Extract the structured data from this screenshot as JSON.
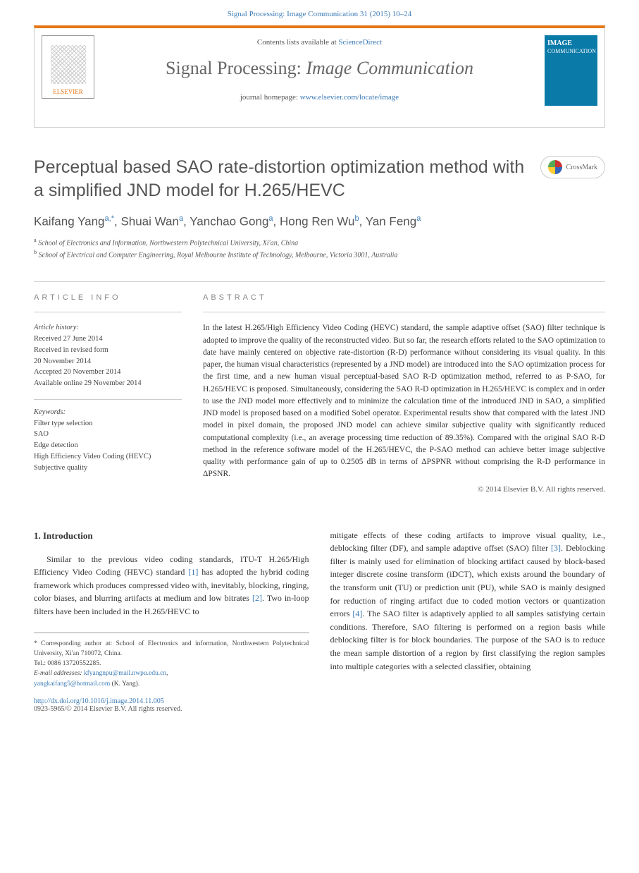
{
  "citation": {
    "prefix": "Signal Processing: Image Communication 31 (2015) 10–24"
  },
  "header": {
    "contents_text": "Contents lists available at ",
    "contents_link": "ScienceDirect",
    "journal_name_a": "Signal Processing: ",
    "journal_name_b": "Image Communication",
    "homepage_text": "journal homepage: ",
    "homepage_link": "www.elsevier.com/locate/image",
    "elsevier_label": "ELSEVIER",
    "cover_title": "IMAGE",
    "cover_sub": "COMMUNICATION"
  },
  "colors": {
    "accent_orange": "#e67817",
    "link_blue": "#3a7ab5",
    "cover_blue": "#0a7aa8",
    "text_grey": "#555555",
    "border_grey": "#cccccc"
  },
  "article": {
    "title": "Perceptual based SAO rate-distortion optimization method with a simplified JND model for H.265/HEVC",
    "crossmark": "CrossMark",
    "authors_html": "Kaifang Yang",
    "authors": [
      {
        "name": "Kaifang Yang",
        "sup": "a,*"
      },
      {
        "name": "Shuai Wan",
        "sup": "a"
      },
      {
        "name": "Yanchao Gong",
        "sup": "a"
      },
      {
        "name": "Hong Ren Wu",
        "sup": "b"
      },
      {
        "name": "Yan Feng",
        "sup": "a"
      }
    ],
    "affiliations": [
      {
        "sup": "a",
        "text": "School of Electronics and Information, Northwestern Polytechnical University, Xi'an, China"
      },
      {
        "sup": "b",
        "text": "School of Electrical and Computer Engineering, Royal Melbourne Institute of Technology, Melbourne, Victoria 3001, Australia"
      }
    ]
  },
  "info": {
    "section_label": "article info",
    "history_label": "Article history:",
    "history": [
      "Received 27 June 2014",
      "Received in revised form",
      "20 November 2014",
      "Accepted 20 November 2014",
      "Available online 29 November 2014"
    ],
    "keywords_label": "Keywords:",
    "keywords": [
      "Filter type selection",
      "SAO",
      "Edge detection",
      "High Efficiency Video Coding (HEVC)",
      "Subjective quality"
    ]
  },
  "abstract": {
    "section_label": "abstract",
    "text": "In the latest H.265/High Efficiency Video Coding (HEVC) standard, the sample adaptive offset (SAO) filter technique is adopted to improve the quality of the reconstructed video. But so far, the research efforts related to the SAO optimization to date have mainly centered on objective rate-distortion (R-D) performance without considering its visual quality. In this paper, the human visual characteristics (represented by a JND model) are introduced into the SAO optimization process for the first time, and a new human visual perceptual-based SAO R-D optimization method, referred to as P-SAO, for H.265/HEVC is proposed. Simultaneously, considering the SAO R-D optimization in H.265/HEVC is complex and in order to use the JND model more effectively and to minimize the calculation time of the introduced JND in SAO, a simplified JND model is proposed based on a modified Sobel operator. Experimental results show that compared with the latest JND model in pixel domain, the proposed JND model can achieve similar subjective quality with significantly reduced computational complexity (i.e., an average processing time reduction of 89.35%). Compared with the original SAO R-D method in the reference software model of the H.265/HEVC, the P-SAO method can achieve better image subjective quality with performance gain of up to 0.2505 dB in terms of ΔPSPNR without comprising the R-D performance in ΔPSNR.",
    "copyright": "© 2014 Elsevier B.V. All rights reserved."
  },
  "body": {
    "section_num": "1.",
    "section_title": "Introduction",
    "col1": "Similar to the previous video coding standards, ITU-T H.265/High Efficiency Video Coding (HEVC) standard [1] has adopted the hybrid coding framework which produces compressed video with, inevitably, blocking, ringing, color biases, and blurring artifacts at medium and low bitrates [2]. Two in-loop filters have been included in the H.265/HEVC to",
    "col2": "mitigate effects of these coding artifacts to improve visual quality, i.e., deblocking filter (DF), and sample adaptive offset (SAO) filter [3]. Deblocking filter is mainly used for elimination of blocking artifact caused by block-based integer discrete cosine transform (iDCT), which exists around the boundary of the transform unit (TU) or prediction unit (PU), while SAO is mainly designed for reduction of ringing artifact due to coded motion vectors or quantization errors [4]. The SAO filter is adaptively applied to all samples satisfying certain conditions. Therefore, SAO filtering is performed on a region basis while deblocking filter is for block boundaries. The purpose of the SAO is to reduce the mean sample distortion of a region by first classifying the region samples into multiple categories with a selected classifier, obtaining"
  },
  "footer": {
    "corr_label": "* Corresponding author at: School of Electronics and information, Northwestern Polytechnical University, Xi'an 710072, China.",
    "tel": "Tel.: 0086 13720552285.",
    "email_label": "E-mail addresses:",
    "emails": [
      "kfyangnpu@mail.nwpu.edu.cn",
      "yangkaifang5@hotmail.com"
    ],
    "email_suffix": " (K. Yang)."
  },
  "doi": {
    "link": "http://dx.doi.org/10.1016/j.image.2014.11.005",
    "issn": "0923-5965/© 2014 Elsevier B.V. All rights reserved."
  }
}
